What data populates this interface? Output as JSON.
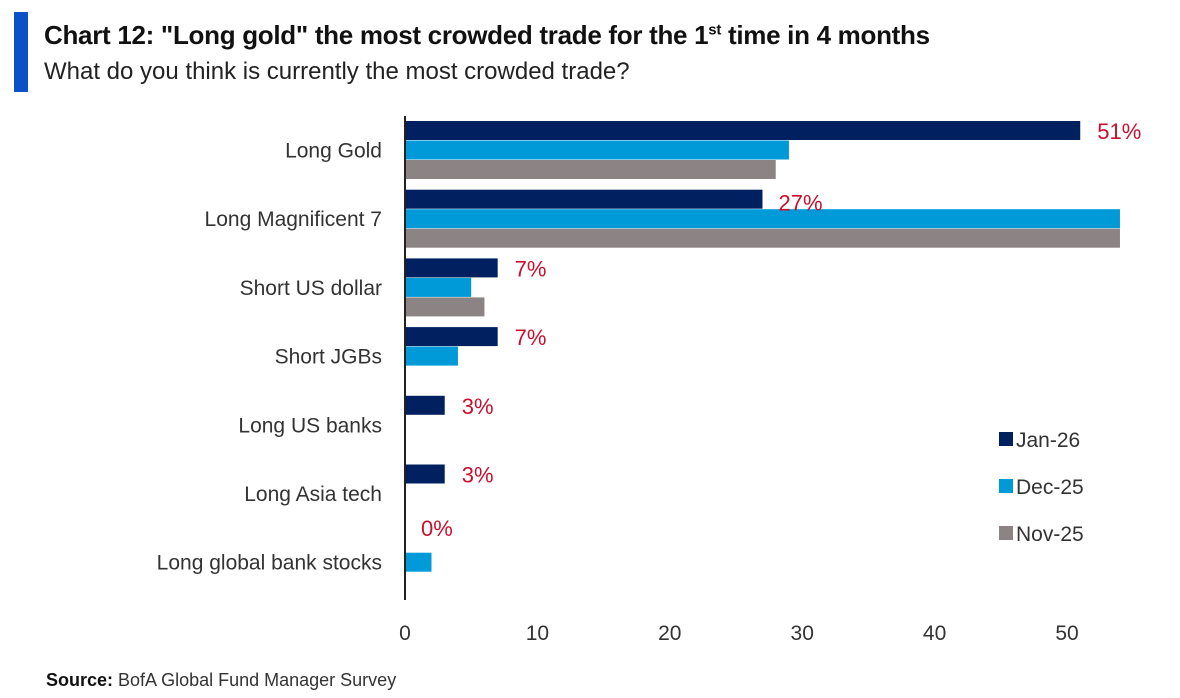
{
  "header": {
    "title_main": "Chart 12: \"Long gold\" the most crowded trade for the 1",
    "title_sup": "st",
    "title_end": " time in 4 months",
    "subtitle": "What do you think is currently the most crowded trade?"
  },
  "footer": {
    "source_label": "Source:",
    "source_text": " BofA Global Fund Manager Survey"
  },
  "colors": {
    "jan26": "#002060",
    "dec25": "#009ad9",
    "nov25": "#8c8484",
    "data_label": "#c8102e",
    "accent": "#0a52c6"
  },
  "chart_data": {
    "type": "bar",
    "orientation": "horizontal",
    "title": "Chart 12: \"Long gold\" the most crowded trade for the 1st time in 4 months",
    "subtitle": "What do you think is currently the most crowded trade?",
    "xlabel": "",
    "ylabel": "",
    "xlim": [
      0,
      55
    ],
    "xticks": [
      0,
      10,
      20,
      30,
      40,
      50
    ],
    "grid": false,
    "legend_position": "right",
    "categories": [
      "Long Gold",
      "Long Magnificent 7",
      "Short US dollar",
      "Short JGBs",
      "Long US banks",
      "Long Asia tech",
      "Long global bank stocks"
    ],
    "series": [
      {
        "name": "Jan-26",
        "color": "#002060",
        "values": [
          51,
          27,
          7,
          7,
          3,
          3,
          0
        ]
      },
      {
        "name": "Dec-25",
        "color": "#009ad9",
        "values": [
          29,
          54,
          5,
          4,
          null,
          null,
          2
        ]
      },
      {
        "name": "Nov-25",
        "color": "#8c8484",
        "values": [
          28,
          54,
          6,
          null,
          null,
          null,
          null
        ]
      }
    ],
    "data_labels": [
      "51%",
      "27%",
      "7%",
      "7%",
      "3%",
      "3%",
      "0%"
    ],
    "source": "BofA Global Fund Manager Survey"
  }
}
